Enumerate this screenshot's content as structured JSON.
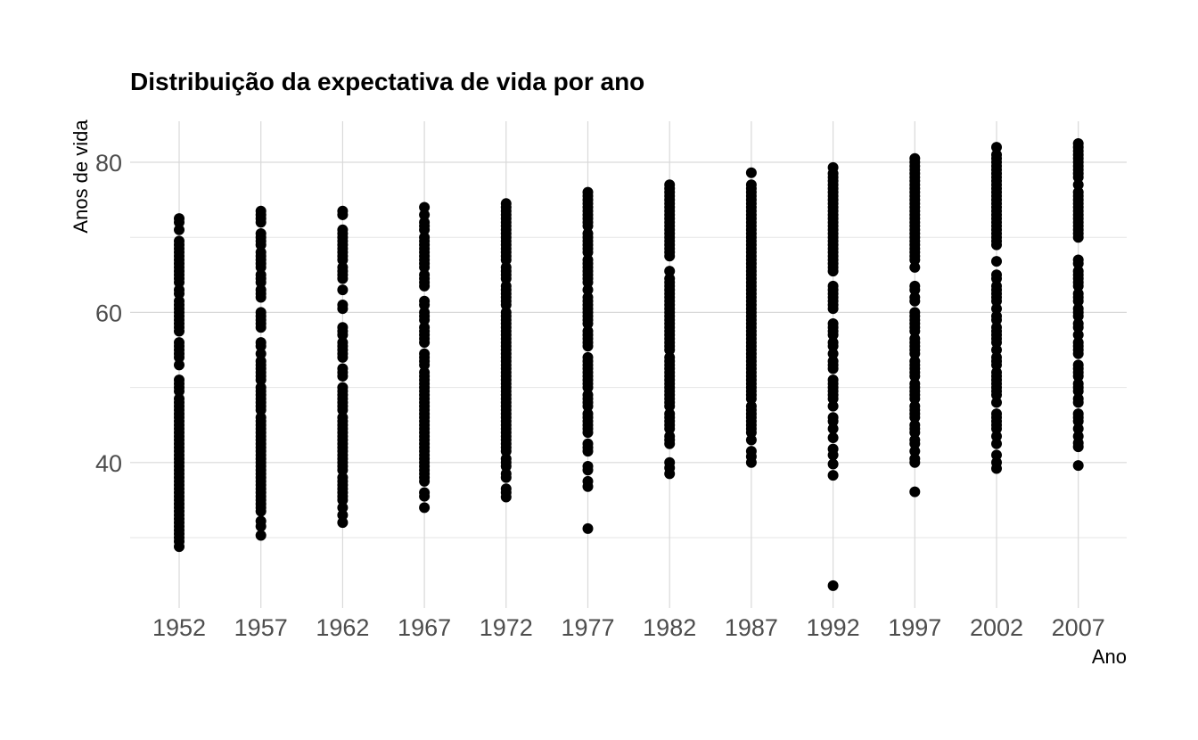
{
  "chart_data": {
    "type": "scatter",
    "title": "Distribuição da expectativa de vida por ano",
    "xlabel": "Ano",
    "ylabel": "Anos de vida",
    "x_ticks": [
      "1952",
      "1957",
      "1962",
      "1967",
      "1972",
      "1977",
      "1982",
      "1987",
      "1992",
      "1997",
      "2002",
      "2007"
    ],
    "y_ticks": [
      "40",
      "60",
      "80"
    ],
    "y_tick_values": [
      40,
      60,
      80
    ],
    "ylim": [
      21,
      86
    ],
    "grid": true,
    "legend": "none",
    "point_color": "#000000",
    "series": [
      {
        "x": 1952,
        "y": [
          28.8,
          29.5,
          30.0,
          30.5,
          31.0,
          31.5,
          32.0,
          32.5,
          33.0,
          33.5,
          34.0,
          34.5,
          35.0,
          35.5,
          36.0,
          36.5,
          37.0,
          37.5,
          38.0,
          38.5,
          39.0,
          39.5,
          40.0,
          40.5,
          41.0,
          41.5,
          42.0,
          42.5,
          43.0,
          43.5,
          44.0,
          44.5,
          45.0,
          45.5,
          46.0,
          46.5,
          47.0,
          47.5,
          48.0,
          48.5,
          49.5,
          50.0,
          50.5,
          51.0,
          53.0,
          54.0,
          54.5,
          55.0,
          55.5,
          56.0,
          57.5,
          58.0,
          58.5,
          59.0,
          59.5,
          60.0,
          60.5,
          61.0,
          61.5,
          62.5,
          63.0,
          64.0,
          64.5,
          65.0,
          65.5,
          66.0,
          66.5,
          67.0,
          67.5,
          68.0,
          68.5,
          69.0,
          69.5,
          71.0,
          72.0,
          72.5
        ]
      },
      {
        "x": 1957,
        "y": [
          30.3,
          31.5,
          32.2,
          33.5,
          34.0,
          34.5,
          35.0,
          35.5,
          36.0,
          36.5,
          37.0,
          37.5,
          38.0,
          38.5,
          39.0,
          39.5,
          40.0,
          40.5,
          41.0,
          41.5,
          42.0,
          42.5,
          43.0,
          43.5,
          44.0,
          44.5,
          45.0,
          45.5,
          46.0,
          47.0,
          47.5,
          48.0,
          48.5,
          49.0,
          49.5,
          50.0,
          51.0,
          51.5,
          52.0,
          52.5,
          53.0,
          53.5,
          54.5,
          55.5,
          56.0,
          58.0,
          58.5,
          59.0,
          59.5,
          60.0,
          62.0,
          62.5,
          63.0,
          64.0,
          64.5,
          65.0,
          66.0,
          66.5,
          67.0,
          67.5,
          68.0,
          69.0,
          69.5,
          70.0,
          70.5,
          72.0,
          72.5,
          73.0,
          73.5
        ]
      },
      {
        "x": 1962,
        "y": [
          32.0,
          33.0,
          34.0,
          35.0,
          35.5,
          36.0,
          36.5,
          37.0,
          37.5,
          38.0,
          39.0,
          39.5,
          40.0,
          40.5,
          41.0,
          41.5,
          42.0,
          42.5,
          43.0,
          43.5,
          44.0,
          44.5,
          45.0,
          45.5,
          46.0,
          47.0,
          47.5,
          48.0,
          48.5,
          49.0,
          49.5,
          50.0,
          51.5,
          52.0,
          52.5,
          54.0,
          54.5,
          55.0,
          55.5,
          56.0,
          57.0,
          57.5,
          58.0,
          60.5,
          61.0,
          63.0,
          64.5,
          65.0,
          65.5,
          66.0,
          67.0,
          67.5,
          68.0,
          68.5,
          69.0,
          69.5,
          70.0,
          70.5,
          71.0,
          73.0,
          73.5
        ]
      },
      {
        "x": 1967,
        "y": [
          34.0,
          35.5,
          36.0,
          37.5,
          38.0,
          38.5,
          39.0,
          39.5,
          40.0,
          40.5,
          41.0,
          41.5,
          42.0,
          42.5,
          43.0,
          43.5,
          44.0,
          44.5,
          45.0,
          45.5,
          46.0,
          46.5,
          47.0,
          47.5,
          48.0,
          48.5,
          49.0,
          49.5,
          50.0,
          50.5,
          51.0,
          51.5,
          52.0,
          53.0,
          53.5,
          54.0,
          54.5,
          56.0,
          56.5,
          57.0,
          57.5,
          58.0,
          59.0,
          59.5,
          60.0,
          61.0,
          61.5,
          63.5,
          64.0,
          64.5,
          65.0,
          66.0,
          66.5,
          67.0,
          67.5,
          68.0,
          68.5,
          69.0,
          69.5,
          70.0,
          71.0,
          71.5,
          72.0,
          73.0,
          74.0
        ]
      },
      {
        "x": 1972,
        "y": [
          35.4,
          36.0,
          36.5,
          38.0,
          38.5,
          39.5,
          40.0,
          40.5,
          41.5,
          42.0,
          42.5,
          43.0,
          43.5,
          44.0,
          44.5,
          45.0,
          45.5,
          46.0,
          46.5,
          47.0,
          47.5,
          48.0,
          48.5,
          49.0,
          49.5,
          50.0,
          50.5,
          51.0,
          51.5,
          52.0,
          52.5,
          53.0,
          53.5,
          54.0,
          54.5,
          55.0,
          55.5,
          56.0,
          56.5,
          57.0,
          57.5,
          58.0,
          58.5,
          59.0,
          59.5,
          60.0,
          61.0,
          61.5,
          62.0,
          62.5,
          63.0,
          63.5,
          64.5,
          65.0,
          65.5,
          66.0,
          67.0,
          67.5,
          68.0,
          68.5,
          69.0,
          69.5,
          70.0,
          70.5,
          71.0,
          71.5,
          72.0,
          72.5,
          73.0,
          73.5,
          74.0,
          74.5
        ]
      },
      {
        "x": 1977,
        "y": [
          31.2,
          36.8,
          37.5,
          39.0,
          39.5,
          41.5,
          42.0,
          42.5,
          44.0,
          44.5,
          45.0,
          45.5,
          46.0,
          46.5,
          47.5,
          48.0,
          48.5,
          49.0,
          50.0,
          50.5,
          51.0,
          51.5,
          52.0,
          52.5,
          53.0,
          53.5,
          54.0,
          55.5,
          56.0,
          56.5,
          57.0,
          57.5,
          58.5,
          59.0,
          59.5,
          60.0,
          60.5,
          61.0,
          61.5,
          62.0,
          63.0,
          64.0,
          64.5,
          65.0,
          65.5,
          66.0,
          66.5,
          67.0,
          68.0,
          68.5,
          69.0,
          69.5,
          70.0,
          70.5,
          71.5,
          72.0,
          72.5,
          73.0,
          73.5,
          74.0,
          74.5,
          75.0,
          75.5,
          76.0
        ]
      },
      {
        "x": 1982,
        "y": [
          38.5,
          39.3,
          40.0,
          42.5,
          43.0,
          43.5,
          44.5,
          45.0,
          45.5,
          46.0,
          46.5,
          47.5,
          48.0,
          48.5,
          49.0,
          49.5,
          50.0,
          50.5,
          51.0,
          51.5,
          52.0,
          52.5,
          53.0,
          53.5,
          54.0,
          55.0,
          55.5,
          56.0,
          56.5,
          57.0,
          57.5,
          58.0,
          58.5,
          59.0,
          59.5,
          60.0,
          60.5,
          61.0,
          61.5,
          62.0,
          62.5,
          63.0,
          63.5,
          64.0,
          64.5,
          65.5,
          67.5,
          68.0,
          68.5,
          69.0,
          69.5,
          70.0,
          70.5,
          71.0,
          71.5,
          72.0,
          72.5,
          73.0,
          73.5,
          74.0,
          74.5,
          75.0,
          75.5,
          76.0,
          76.5,
          77.0
        ]
      },
      {
        "x": 1987,
        "y": [
          40.0,
          40.8,
          41.5,
          43.0,
          44.0,
          44.5,
          45.0,
          45.5,
          46.0,
          46.5,
          47.0,
          47.5,
          48.5,
          49.0,
          49.5,
          50.0,
          50.5,
          51.0,
          51.5,
          52.0,
          52.5,
          53.0,
          53.5,
          54.0,
          54.5,
          55.0,
          55.5,
          56.0,
          56.5,
          57.0,
          57.5,
          58.0,
          58.5,
          59.0,
          59.5,
          60.0,
          60.5,
          61.0,
          61.5,
          62.0,
          62.5,
          63.0,
          63.5,
          64.0,
          64.5,
          65.0,
          65.5,
          66.0,
          66.5,
          67.0,
          67.5,
          68.0,
          68.5,
          69.0,
          69.5,
          70.0,
          70.5,
          71.0,
          71.5,
          72.0,
          72.5,
          73.0,
          73.5,
          74.0,
          74.5,
          75.0,
          75.5,
          76.0,
          76.5,
          77.0,
          78.6
        ]
      },
      {
        "x": 1992,
        "y": [
          23.6,
          38.3,
          39.8,
          41.0,
          41.8,
          43.3,
          44.5,
          45.5,
          46.0,
          47.5,
          48.5,
          49.0,
          49.5,
          50.0,
          50.5,
          51.0,
          52.5,
          53.0,
          53.5,
          54.5,
          55.5,
          56.0,
          57.0,
          57.5,
          58.0,
          58.5,
          60.5,
          61.0,
          61.5,
          62.0,
          62.5,
          63.0,
          63.5,
          65.5,
          66.0,
          66.5,
          67.0,
          67.5,
          68.0,
          68.5,
          69.0,
          69.5,
          70.0,
          70.5,
          71.0,
          71.5,
          72.0,
          72.5,
          73.0,
          73.5,
          74.0,
          74.5,
          75.0,
          75.5,
          76.0,
          76.5,
          77.0,
          77.5,
          78.0,
          78.5,
          79.3
        ]
      },
      {
        "x": 1997,
        "y": [
          36.1,
          40.0,
          40.5,
          41.5,
          42.5,
          43.0,
          44.0,
          44.5,
          45.0,
          46.0,
          46.5,
          47.0,
          47.5,
          48.5,
          49.0,
          49.5,
          50.0,
          50.5,
          51.5,
          52.0,
          52.5,
          53.0,
          53.5,
          54.5,
          55.0,
          55.5,
          56.0,
          56.5,
          57.5,
          58.0,
          58.5,
          59.0,
          59.5,
          60.0,
          61.5,
          62.0,
          63.0,
          63.5,
          66.0,
          67.0,
          67.5,
          68.0,
          68.5,
          69.0,
          69.5,
          70.0,
          70.5,
          71.0,
          71.5,
          72.0,
          72.5,
          73.0,
          73.5,
          74.0,
          74.5,
          75.0,
          75.5,
          76.0,
          76.5,
          77.0,
          77.5,
          78.0,
          78.5,
          79.0,
          79.5,
          80.0,
          80.5
        ]
      },
      {
        "x": 2002,
        "y": [
          39.2,
          40.0,
          41.0,
          42.5,
          43.5,
          44.5,
          45.0,
          45.5,
          46.0,
          46.5,
          48.0,
          49.0,
          49.5,
          50.0,
          50.5,
          51.0,
          51.5,
          52.0,
          53.0,
          53.5,
          54.0,
          55.0,
          56.0,
          56.5,
          57.0,
          57.5,
          58.0,
          59.0,
          59.5,
          60.5,
          61.5,
          62.0,
          62.5,
          63.0,
          63.5,
          64.5,
          65.0,
          66.8,
          69.0,
          69.5,
          70.0,
          70.5,
          71.0,
          71.5,
          72.0,
          72.5,
          73.0,
          73.5,
          74.0,
          74.5,
          75.0,
          75.5,
          76.0,
          76.5,
          77.0,
          77.5,
          78.0,
          78.5,
          79.0,
          79.5,
          80.0,
          80.5,
          81.0,
          82.0
        ]
      },
      {
        "x": 2007,
        "y": [
          39.6,
          42.1,
          42.6,
          43.5,
          44.5,
          45.5,
          46.0,
          46.5,
          48.0,
          48.5,
          49.5,
          50.0,
          50.5,
          51.5,
          52.0,
          52.5,
          53.0,
          54.5,
          55.0,
          55.5,
          56.0,
          57.0,
          58.0,
          58.5,
          59.5,
          60.0,
          60.5,
          61.5,
          62.0,
          62.5,
          63.5,
          64.0,
          64.5,
          65.0,
          65.5,
          66.5,
          67.0,
          70.0,
          70.5,
          71.0,
          71.5,
          72.0,
          72.5,
          73.0,
          73.5,
          74.0,
          74.5,
          75.0,
          75.5,
          76.0,
          77.0,
          78.0,
          78.5,
          79.0,
          79.5,
          80.0,
          80.5,
          81.0,
          81.5,
          82.0,
          82.5
        ]
      }
    ]
  }
}
